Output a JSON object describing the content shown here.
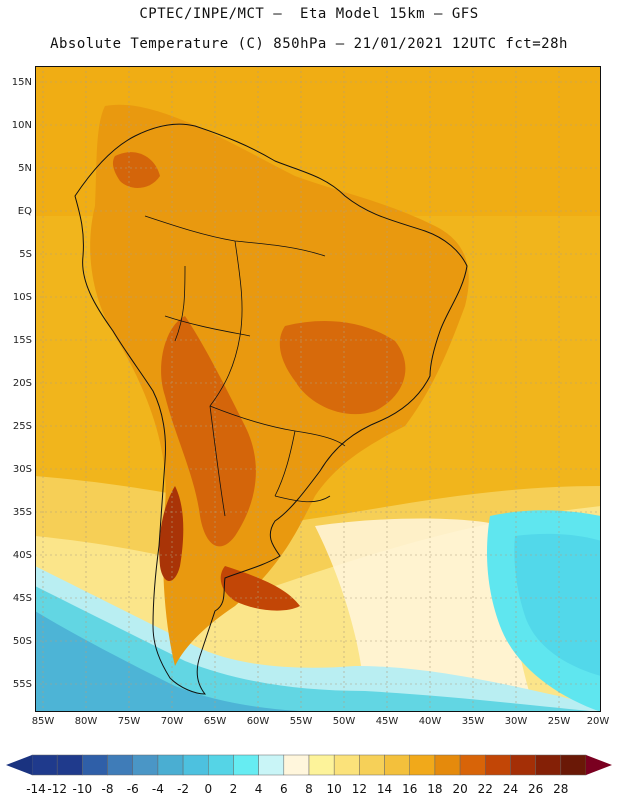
{
  "header": {
    "line1": "CPTEC/INPE/MCT –  Eta Model 15km – GFS",
    "line2": "Absolute Temperature (C) 850hPa – 21/01/2021 12UTC fct=28h"
  },
  "axes": {
    "lat_labels": [
      "15N",
      "10N",
      "5N",
      "EQ",
      "5S",
      "10S",
      "15S",
      "20S",
      "25S",
      "30S",
      "35S",
      "40S",
      "45S",
      "50S",
      "55S"
    ],
    "lon_labels": [
      "85W",
      "80W",
      "75W",
      "70W",
      "65W",
      "60W",
      "55W",
      "50W",
      "45W",
      "40W",
      "35W",
      "30W",
      "25W",
      "20W"
    ]
  },
  "colorbar": {
    "labels": [
      "-14",
      "-12",
      "-10",
      "-8",
      "-6",
      "-4",
      "-2",
      "0",
      "2",
      "4",
      "6",
      "8",
      "10",
      "12",
      "14",
      "16",
      "18",
      "20",
      "22",
      "24",
      "26",
      "28"
    ],
    "colors": [
      "#1f3a8c",
      "#1f3a8c",
      "#2f5fa8",
      "#3f7cb8",
      "#4a96c6",
      "#4aaed2",
      "#4dc1df",
      "#55d4e6",
      "#66ecf2",
      "#c9f5f7",
      "#fff6dc",
      "#fdf39a",
      "#fbe27a",
      "#f6d058",
      "#f3c03c",
      "#f1a91a",
      "#e58a0c",
      "#d86408",
      "#c24606",
      "#a42f06",
      "#842006",
      "#6a1806"
    ],
    "under_color": "#1a3380",
    "over_color": "#7a0020"
  }
}
